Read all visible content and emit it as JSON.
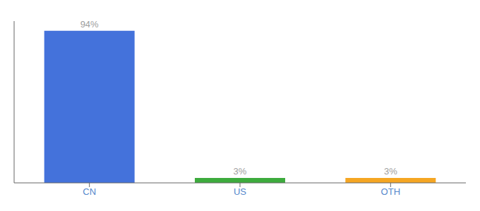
{
  "chart_data": {
    "type": "bar",
    "categories": [
      "CN",
      "US",
      "OTH"
    ],
    "values": [
      94,
      3,
      3
    ],
    "value_labels": [
      "94%",
      "3%",
      "3%"
    ],
    "colors": [
      "#4472db",
      "#3dab3d",
      "#f5a623"
    ],
    "ylim": [
      0,
      100
    ],
    "data_labels": true,
    "tick_labels": "x",
    "grid": false
  }
}
